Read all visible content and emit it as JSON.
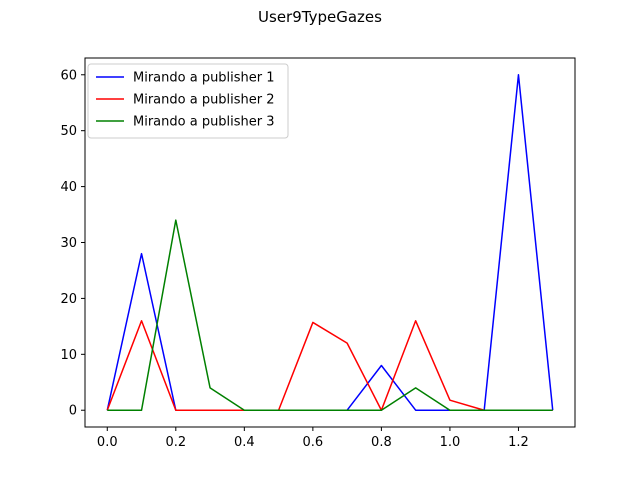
{
  "chart_data": {
    "type": "line",
    "title": "User9TypeGazes",
    "xlabel": "",
    "ylabel": "",
    "x": [
      0.0,
      0.1,
      0.2,
      0.3,
      0.4,
      0.5,
      0.6,
      0.7,
      0.8,
      0.9,
      1.0,
      1.1,
      1.2,
      1.3
    ],
    "xlim": [
      -0.065,
      1.365
    ],
    "ylim": [
      -3,
      63
    ],
    "xticks": [
      0.0,
      0.2,
      0.4,
      0.6,
      0.8,
      1.0,
      1.2
    ],
    "xtick_labels": [
      "0.0",
      "0.2",
      "0.4",
      "0.6",
      "0.8",
      "1.0",
      "1.2"
    ],
    "yticks": [
      0,
      10,
      20,
      30,
      40,
      50,
      60
    ],
    "ytick_labels": [
      "0",
      "10",
      "20",
      "30",
      "40",
      "50",
      "60"
    ],
    "grid": false,
    "legend_position": "top-left",
    "series": [
      {
        "name": "Mirando a publisher 1",
        "color": "#0000ff",
        "values": [
          0,
          28,
          0,
          0,
          0,
          0,
          0,
          0,
          8,
          0,
          0,
          0,
          60,
          0
        ]
      },
      {
        "name": "Mirando a publisher 2",
        "color": "#ff0000",
        "values": [
          0,
          16,
          0,
          0,
          0,
          0,
          15.7,
          12,
          0,
          16,
          1.8,
          0,
          0,
          0
        ]
      },
      {
        "name": "Mirando a publisher 3",
        "color": "#008000",
        "values": [
          0,
          0,
          34,
          4,
          0,
          0,
          0,
          0,
          0,
          4,
          0,
          0,
          0,
          0
        ]
      }
    ]
  }
}
